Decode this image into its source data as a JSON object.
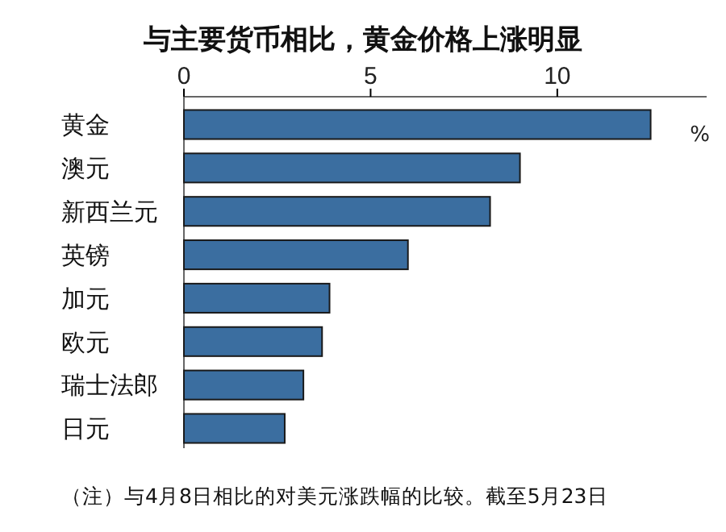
{
  "chart_data": {
    "type": "bar",
    "orientation": "horizontal",
    "title": "与主要货币相比，黄金价格上涨明显",
    "categories": [
      "黄金",
      "澳元",
      "新西兰元",
      "英镑",
      "加元",
      "欧元",
      "瑞士法郎",
      "日元"
    ],
    "values": [
      12.5,
      9.0,
      8.2,
      6.0,
      3.9,
      3.7,
      3.2,
      2.7
    ],
    "color": "#3b6ea0",
    "xlim": [
      0,
      14
    ],
    "xticks": [
      0,
      5,
      10
    ],
    "grid": false,
    "annotations": [
      "%",
      "（注）与4月8日相比的对美元涨跌幅的比较。截至5月23日"
    ]
  }
}
